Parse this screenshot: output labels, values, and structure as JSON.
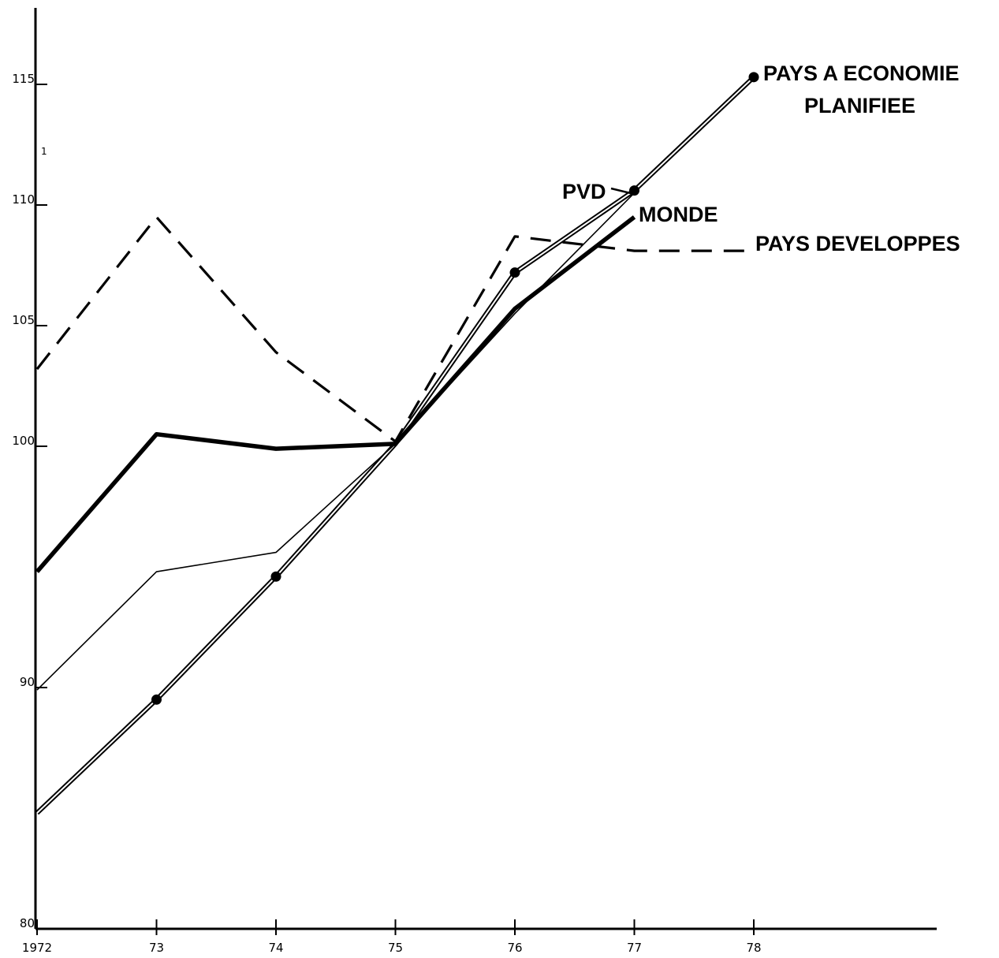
{
  "chart_data": {
    "type": "line",
    "title": "",
    "xlabel": "",
    "ylabel": "",
    "x": [
      1972,
      1973,
      1974,
      1975,
      1976,
      1977,
      1978
    ],
    "x_tick_labels": [
      "1972",
      "73",
      "74",
      "75",
      "76",
      "77",
      "78"
    ],
    "y_ticks": [
      80,
      90,
      100,
      105,
      110,
      115
    ],
    "y_tick_labels": [
      "80",
      "90",
      "100",
      "105",
      "110",
      "115"
    ],
    "xlim": [
      1972,
      1979.5
    ],
    "ylim": [
      80,
      117.5
    ],
    "grid": false,
    "legend": "none (series labelled directly at line ends)",
    "stray_mark": "1",
    "series": [
      {
        "name": "PAYS A ECONOMIE PLANIFIEE",
        "label_lines": [
          "PAYS A ECONOMIE",
          "PLANIFIEE"
        ],
        "style": "double-thin-with-dots",
        "points": [
          [
            1972,
            84.8
          ],
          [
            1973,
            89.5
          ],
          [
            1974,
            94.6
          ],
          [
            1975,
            100.1
          ],
          [
            1976,
            107.2
          ],
          [
            1977,
            110.6
          ],
          [
            1978,
            115.3
          ]
        ]
      },
      {
        "name": "PVD",
        "style": "thin",
        "points": [
          [
            1972,
            89.9
          ],
          [
            1973,
            94.8
          ],
          [
            1974,
            95.6
          ],
          [
            1975,
            100.1
          ],
          [
            1976,
            105.5
          ],
          [
            1977,
            110.5
          ]
        ]
      },
      {
        "name": "MONDE",
        "style": "thick",
        "points": [
          [
            1972,
            94.8
          ],
          [
            1973,
            100.5
          ],
          [
            1974,
            99.9
          ],
          [
            1975,
            100.1
          ],
          [
            1976,
            105.7
          ],
          [
            1977,
            109.5
          ]
        ]
      },
      {
        "name": "PAYS DEVELOPPES",
        "style": "dashed",
        "points": [
          [
            1972,
            103.2
          ],
          [
            1973,
            109.5
          ],
          [
            1974,
            103.9
          ],
          [
            1975,
            100.2
          ],
          [
            1976,
            108.7
          ],
          [
            1977,
            108.1
          ],
          [
            1978,
            108.1
          ]
        ]
      }
    ]
  }
}
